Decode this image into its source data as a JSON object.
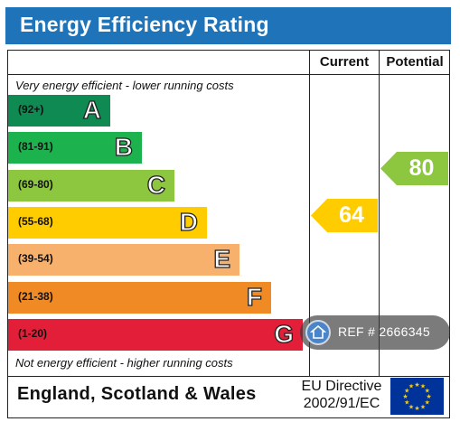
{
  "title": "Energy Efficiency Rating",
  "columns": {
    "current": "Current",
    "potential": "Potential"
  },
  "top_note": "Very energy efficient - lower running costs",
  "bottom_note": "Not energy efficient - higher running costs",
  "bands": [
    {
      "range": "(92+)",
      "letter": "A",
      "color": "#0e8a52"
    },
    {
      "range": "(81-91)",
      "letter": "B",
      "color": "#1cb34f"
    },
    {
      "range": "(69-80)",
      "letter": "C",
      "color": "#8dc63f"
    },
    {
      "range": "(55-68)",
      "letter": "D",
      "color": "#ffcc00"
    },
    {
      "range": "(39-54)",
      "letter": "E",
      "color": "#f7b16c"
    },
    {
      "range": "(21-38)",
      "letter": "F",
      "color": "#f08a24"
    },
    {
      "range": "(1-20)",
      "letter": "G",
      "color": "#e31e38"
    }
  ],
  "current_rating": {
    "value": "64",
    "band": "D",
    "color": "#ffcc00"
  },
  "potential_rating": {
    "value": "80",
    "band": "C",
    "color": "#8dc63f"
  },
  "footer": {
    "country": "England, Scotland & Wales",
    "directive_line1": "EU Directive",
    "directive_line2": "2002/91/EC"
  },
  "eu_flag": {
    "background": "#003399",
    "stars": "#ffcc00"
  },
  "watermark": {
    "text": "REF # 2666345",
    "icon": "house-icon"
  }
}
